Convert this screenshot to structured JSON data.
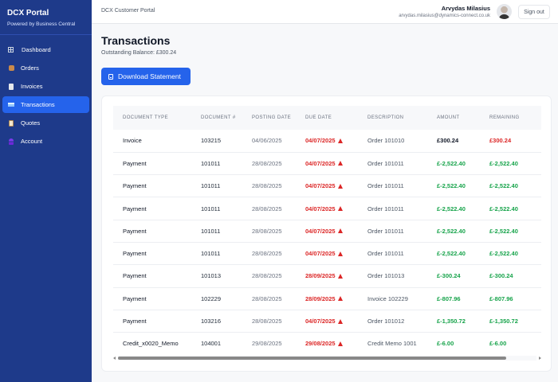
{
  "sidebar": {
    "brand_title": "DCX Portal",
    "brand_subtitle": "Powered by Business Central",
    "items": [
      {
        "label": "Dashboard",
        "icon": "grid-icon",
        "active": false
      },
      {
        "label": "Orders",
        "icon": "package-icon",
        "active": false
      },
      {
        "label": "Invoices",
        "icon": "document-icon",
        "active": false
      },
      {
        "label": "Transactions",
        "icon": "credit-card-icon",
        "active": true
      },
      {
        "label": "Quotes",
        "icon": "clipboard-icon",
        "active": false
      },
      {
        "label": "Account",
        "icon": "user-icon",
        "active": false
      }
    ]
  },
  "header": {
    "portal_name": "DCX Customer Portal",
    "user_name": "Arvydas Milasius",
    "user_email": "arvydas.milasius@dynamics-connect.co.uk",
    "sign_out_label": "Sign out"
  },
  "page": {
    "title": "Transactions",
    "balance_text": "Outstanding Balance: £300.24",
    "download_label": "Download Statement"
  },
  "table": {
    "columns": [
      "Document Type",
      "Document #",
      "Posting Date",
      "Due Date",
      "Description",
      "Amount",
      "Remaining"
    ],
    "rows": [
      {
        "type": "Invoice",
        "doc": "103215",
        "posting": "04/06/2025",
        "due": "04/07/2025",
        "desc": "Order 101010",
        "amount": "£300.24",
        "remaining": "£300.24",
        "negative": false
      },
      {
        "type": "Payment",
        "doc": "101011",
        "posting": "28/08/2025",
        "due": "04/07/2025",
        "desc": "Order 101011",
        "amount": "£-2,522.40",
        "remaining": "£-2,522.40",
        "negative": true
      },
      {
        "type": "Payment",
        "doc": "101011",
        "posting": "28/08/2025",
        "due": "04/07/2025",
        "desc": "Order 101011",
        "amount": "£-2,522.40",
        "remaining": "£-2,522.40",
        "negative": true
      },
      {
        "type": "Payment",
        "doc": "101011",
        "posting": "28/08/2025",
        "due": "04/07/2025",
        "desc": "Order 101011",
        "amount": "£-2,522.40",
        "remaining": "£-2,522.40",
        "negative": true
      },
      {
        "type": "Payment",
        "doc": "101011",
        "posting": "28/08/2025",
        "due": "04/07/2025",
        "desc": "Order 101011",
        "amount": "£-2,522.40",
        "remaining": "£-2,522.40",
        "negative": true
      },
      {
        "type": "Payment",
        "doc": "101011",
        "posting": "28/08/2025",
        "due": "04/07/2025",
        "desc": "Order 101011",
        "amount": "£-2,522.40",
        "remaining": "£-2,522.40",
        "negative": true
      },
      {
        "type": "Payment",
        "doc": "101013",
        "posting": "28/08/2025",
        "due": "28/09/2025",
        "desc": "Order 101013",
        "amount": "£-300.24",
        "remaining": "£-300.24",
        "negative": true
      },
      {
        "type": "Payment",
        "doc": "102229",
        "posting": "28/08/2025",
        "due": "28/09/2025",
        "desc": "Invoice 102229",
        "amount": "£-807.96",
        "remaining": "£-807.96",
        "negative": true
      },
      {
        "type": "Payment",
        "doc": "103216",
        "posting": "28/08/2025",
        "due": "04/07/2025",
        "desc": "Order 101012",
        "amount": "£-1,350.72",
        "remaining": "£-1,350.72",
        "negative": true
      },
      {
        "type": "Credit_x0020_Memo",
        "doc": "104001",
        "posting": "29/08/2025",
        "due": "29/08/2025",
        "desc": "Credit Memo 1001",
        "amount": "£-6.00",
        "remaining": "£-6.00",
        "negative": true
      }
    ]
  },
  "colors": {
    "sidebar_bg": "#1e3a8a",
    "accent": "#2563eb",
    "overdue": "#dc2626",
    "credit": "#16a34a"
  }
}
